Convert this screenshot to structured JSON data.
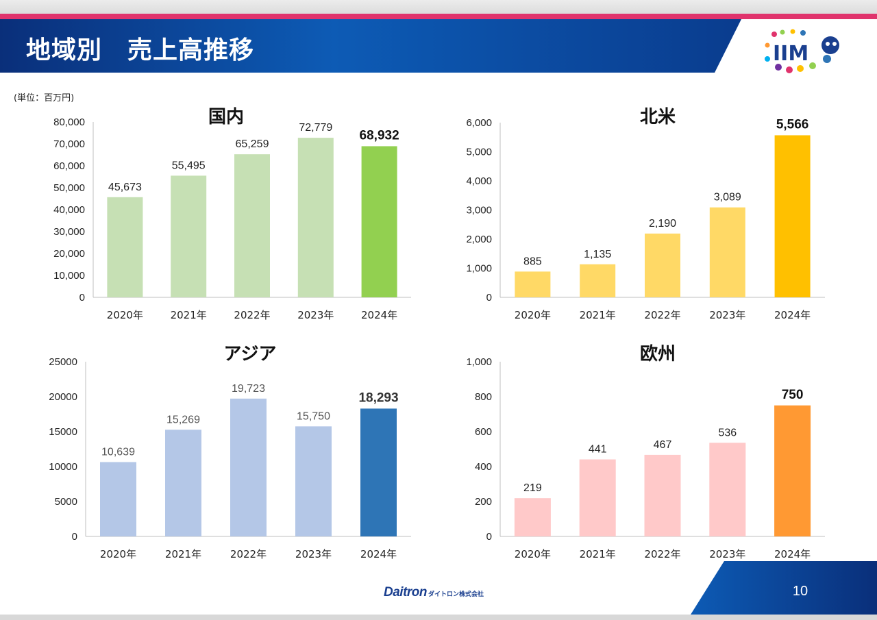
{
  "header": {
    "title": "地域別　売上高推移",
    "logo_text": "IIM"
  },
  "unit_label": "(単位：百万円)",
  "footer": {
    "brand": "Daitron",
    "brand_jp": "ダイトロン株式会社",
    "page_number": "10"
  },
  "colors": {
    "header_blue": "#0d5bb5",
    "accent_pink": "#e0336c"
  },
  "chart_data": [
    {
      "type": "bar",
      "title": "国内",
      "categories": [
        "2020年",
        "2021年",
        "2022年",
        "2023年",
        "2024年"
      ],
      "values": [
        45673,
        55495,
        65259,
        72779,
        68932
      ],
      "value_labels": [
        "45,673",
        "55,495",
        "65,259",
        "72,779",
        "68,932"
      ],
      "highlight_index": 4,
      "ylim": [
        0,
        80000
      ],
      "yticks": [
        0,
        10000,
        20000,
        30000,
        40000,
        50000,
        60000,
        70000,
        80000
      ],
      "ytick_labels": [
        "0",
        "10,000",
        "20,000",
        "30,000",
        "40,000",
        "50,000",
        "60,000",
        "70,000",
        "80,000"
      ],
      "bar_color": "#c6e0b4",
      "highlight_color": "#92d050",
      "label_color": "#222222",
      "grid": false
    },
    {
      "type": "bar",
      "title": "北米",
      "categories": [
        "2020年",
        "2021年",
        "2022年",
        "2023年",
        "2024年"
      ],
      "values": [
        885,
        1135,
        2190,
        3089,
        5566
      ],
      "value_labels": [
        "885",
        "1,135",
        "2,190",
        "3,089",
        "5,566"
      ],
      "highlight_index": 4,
      "ylim": [
        0,
        6000
      ],
      "yticks": [
        0,
        1000,
        2000,
        3000,
        4000,
        5000,
        6000
      ],
      "ytick_labels": [
        "0",
        "1,000",
        "2,000",
        "3,000",
        "4,000",
        "5,000",
        "6,000"
      ],
      "bar_color": "#ffd966",
      "highlight_color": "#ffc000",
      "label_color": "#222222",
      "grid": false
    },
    {
      "type": "bar",
      "title": "アジア",
      "categories": [
        "2020年",
        "2021年",
        "2022年",
        "2023年",
        "2024年"
      ],
      "values": [
        10639,
        15269,
        19723,
        15750,
        18293
      ],
      "value_labels": [
        "10,639",
        "15,269",
        "19,723",
        "15,750",
        "18,293"
      ],
      "highlight_index": 4,
      "ylim": [
        0,
        25000
      ],
      "yticks": [
        0,
        5000,
        10000,
        15000,
        20000,
        25000
      ],
      "ytick_labels": [
        "0",
        "5000",
        "10000",
        "15000",
        "20000",
        "25000"
      ],
      "bar_color": "#b4c7e7",
      "highlight_color": "#2e75b6",
      "label_color": "#555555",
      "grid": false
    },
    {
      "type": "bar",
      "title": "欧州",
      "categories": [
        "2020年",
        "2021年",
        "2022年",
        "2023年",
        "2024年"
      ],
      "values": [
        219,
        441,
        467,
        536,
        750
      ],
      "value_labels": [
        "219",
        "441",
        "467",
        "536",
        "750"
      ],
      "highlight_index": 4,
      "ylim": [
        0,
        1000
      ],
      "yticks": [
        0,
        200,
        400,
        600,
        800,
        1000
      ],
      "ytick_labels": [
        "0",
        "200",
        "400",
        "600",
        "800",
        "1,000"
      ],
      "bar_color": "#ffc9c9",
      "highlight_color": "#ff9933",
      "label_color": "#222222",
      "grid": false
    }
  ]
}
